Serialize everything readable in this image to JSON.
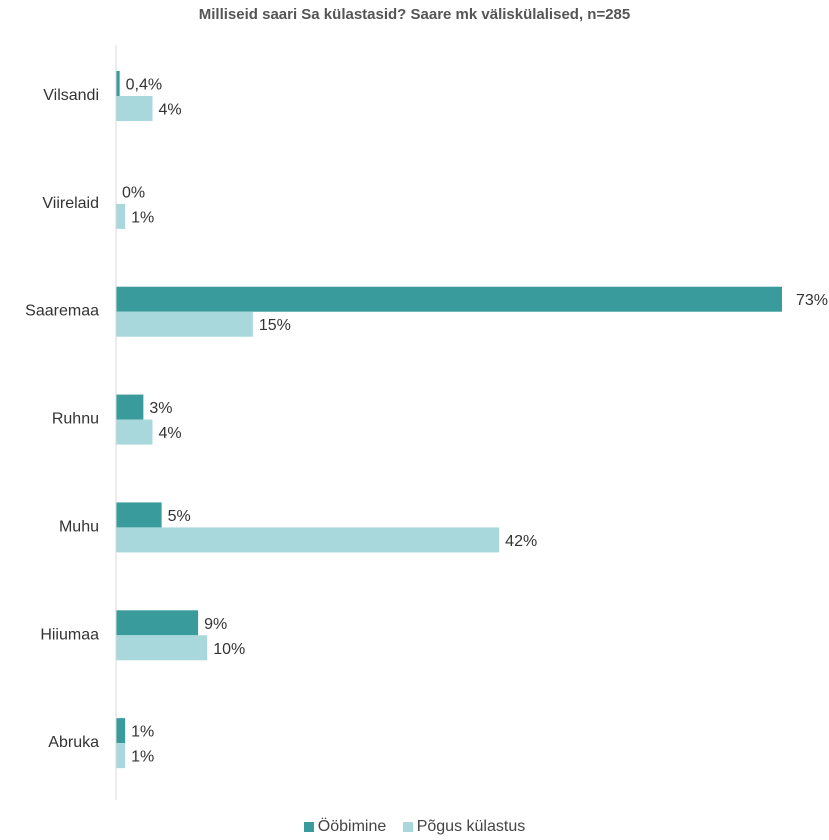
{
  "chart_data": {
    "type": "bar",
    "orientation": "horizontal",
    "title": "Milliseid saari Sa külastasid? Saare mk väliskülalised, n=285",
    "categories": [
      "Vilsandi",
      "Viirelaid",
      "Saaremaa",
      "Ruhnu",
      "Muhu",
      "Hiiumaa",
      "Abruka"
    ],
    "series": [
      {
        "name": "Ööbimine",
        "color": "#3a9b9d",
        "values": [
          0.4,
          0,
          73,
          3,
          5,
          9,
          1
        ],
        "labels": [
          "0,4%",
          "0%",
          "73%",
          "3%",
          "5%",
          "9%",
          "1%"
        ]
      },
      {
        "name": "Põgus külastus",
        "color": "#a8d8dc",
        "values": [
          4,
          1,
          15,
          4,
          42,
          10,
          1
        ],
        "labels": [
          "4%",
          "1%",
          "15%",
          "4%",
          "42%",
          "10%",
          "1%"
        ]
      }
    ],
    "xlim": [
      0,
      73
    ],
    "grid": false,
    "legend_position": "bottom"
  }
}
